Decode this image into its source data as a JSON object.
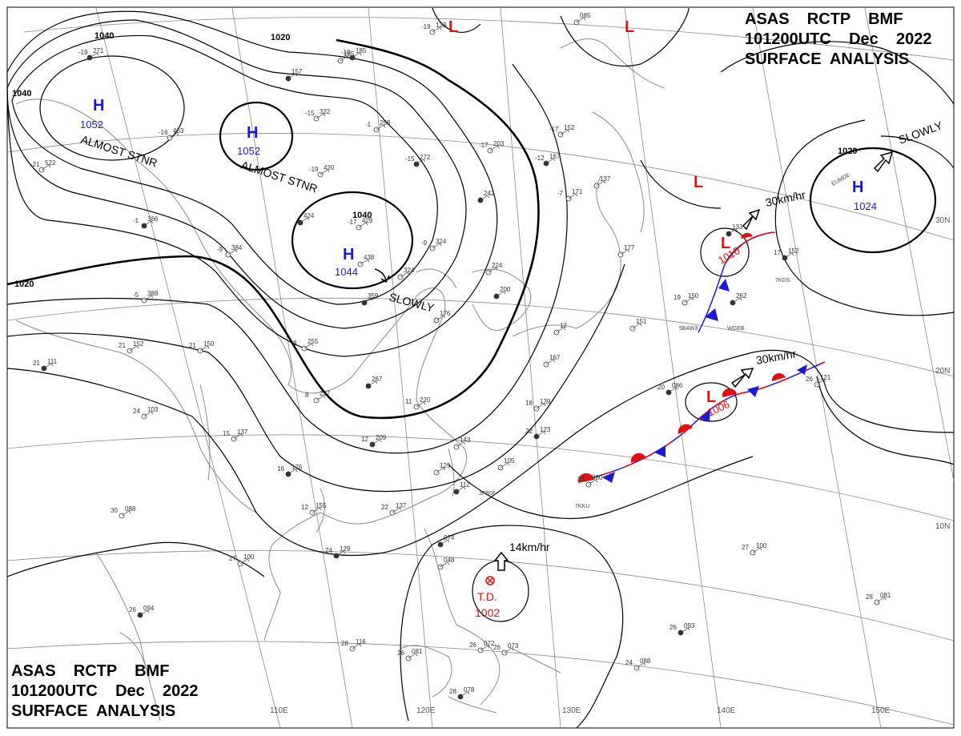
{
  "header": {
    "line1": "ASAS    RCTP    BMF",
    "line2": "101200UTC    Dec    2022",
    "line3": "SURFACE  ANALYSIS"
  },
  "lat_labels": [
    "30N",
    "20N",
    "10N"
  ],
  "lon_labels": [
    "110E",
    "120E",
    "130E",
    "140E",
    "150E"
  ],
  "isobar_labels": [
    "1040",
    "1040",
    "1040",
    "1020",
    "1020",
    "1020"
  ],
  "highs": [
    {
      "symbol": "H",
      "pressure": "1052",
      "note": "ALMOST STNR"
    },
    {
      "symbol": "H",
      "pressure": "1052",
      "note": "ALMOST STNR"
    },
    {
      "symbol": "H",
      "pressure": "1044",
      "note": "SLOWLY"
    },
    {
      "symbol": "H",
      "pressure": "1024",
      "note": "SLOWLY"
    }
  ],
  "lows": [
    {
      "symbol": "L",
      "pressure": ""
    },
    {
      "symbol": "L",
      "pressure": ""
    },
    {
      "symbol": "L",
      "pressure": ""
    },
    {
      "symbol": "L",
      "pressure": "1010",
      "speed": "30km/hr"
    },
    {
      "symbol": "L",
      "pressure": "1006",
      "speed": "30km/hr"
    }
  ],
  "tropical": {
    "symbol": "T.D.",
    "pressure": "1002",
    "speed": "14km/hr"
  },
  "ship_ids": [
    "EUMDE",
    "5BAW3",
    "WGEB",
    "7KDS",
    "7KKU",
    "3FB06"
  ],
  "stations": [
    {
      "t": "-19",
      "p": "271"
    },
    {
      "t": "-16",
      "p": "463"
    },
    {
      "t": "-21",
      "p": "522"
    },
    {
      "t": "-1",
      "p": "366"
    },
    {
      "t": "-9",
      "p": "384"
    },
    {
      "t": "-5",
      "p": "388"
    },
    {
      "t": "-10",
      "p": "185"
    },
    {
      "t": "-15",
      "p": "322"
    },
    {
      "t": "-1",
      "p": "258"
    },
    {
      "t": "-15",
      "p": "272"
    },
    {
      "t": "-19",
      "p": "420"
    },
    {
      "t": "-17",
      "p": "429"
    },
    {
      "t": "",
      "p": "424"
    },
    {
      "t": "",
      "p": "438"
    },
    {
      "t": "-17",
      "p": "203"
    },
    {
      "t": "-12",
      "p": "167"
    },
    {
      "t": "-17",
      "p": "152"
    },
    {
      "t": "-7",
      "p": "171"
    },
    {
      "t": "",
      "p": "242"
    },
    {
      "t": "-9",
      "p": "324"
    },
    {
      "t": "",
      "p": "324"
    },
    {
      "t": "",
      "p": "359"
    },
    {
      "t": "",
      "p": "176"
    },
    {
      "t": "8",
      "p": "255"
    },
    {
      "t": "",
      "p": "267"
    },
    {
      "t": "8",
      "p": "237"
    },
    {
      "t": "11",
      "p": "220"
    },
    {
      "t": "12",
      "p": "209"
    },
    {
      "t": "21",
      "p": "152"
    },
    {
      "t": "21",
      "p": "150"
    },
    {
      "t": "21",
      "p": "111"
    },
    {
      "t": "24",
      "p": "103"
    },
    {
      "t": "15",
      "p": "137"
    },
    {
      "t": "16",
      "p": "176"
    },
    {
      "t": "12",
      "p": "155"
    },
    {
      "t": "22",
      "p": "137"
    },
    {
      "t": "24",
      "p": "129"
    },
    {
      "t": "27",
      "p": "100"
    },
    {
      "t": "30",
      "p": "088"
    },
    {
      "t": "26",
      "p": "094"
    },
    {
      "t": "28",
      "p": "116"
    },
    {
      "t": "26",
      "p": "081"
    },
    {
      "t": "28",
      "p": "078"
    },
    {
      "t": "26",
      "p": "072"
    },
    {
      "t": "26",
      "p": "073"
    },
    {
      "t": "",
      "p": "074"
    },
    {
      "t": "",
      "p": "048"
    },
    {
      "t": "18",
      "p": "139"
    },
    {
      "t": "22",
      "p": "123"
    },
    {
      "t": "",
      "p": "143"
    },
    {
      "t": "",
      "p": "129"
    },
    {
      "t": "",
      "p": "112"
    },
    {
      "t": "",
      "p": "105"
    },
    {
      "t": "23",
      "p": "080"
    },
    {
      "t": "20",
      "p": "086"
    },
    {
      "t": "",
      "p": "151"
    },
    {
      "t": "19",
      "p": "150"
    },
    {
      "t": "",
      "p": "262"
    },
    {
      "t": "",
      "p": "137"
    },
    {
      "t": "",
      "p": "177"
    },
    {
      "t": "17",
      "p": "152"
    },
    {
      "t": "26",
      "p": "121"
    },
    {
      "t": "27",
      "p": "100"
    },
    {
      "t": "26",
      "p": "093"
    },
    {
      "t": "24",
      "p": "088"
    },
    {
      "t": "28",
      "p": "081"
    },
    {
      "t": "",
      "p": "133"
    },
    {
      "t": "",
      "p": "085"
    },
    {
      "t": "-19",
      "p": "133"
    },
    {
      "t": "",
      "p": "157"
    },
    {
      "t": "",
      "p": "12"
    },
    {
      "t": "",
      "p": "224"
    },
    {
      "t": "",
      "p": "200"
    },
    {
      "t": "",
      "p": "185"
    },
    {
      "t": "",
      "p": "167"
    }
  ],
  "colors": {
    "isobar": "#000000",
    "coast": "#808080",
    "grid": "#808080",
    "high": "#1a1ad4",
    "low": "#e01010",
    "warm_front": "#e01010",
    "cold_front": "#1a1ad4"
  }
}
